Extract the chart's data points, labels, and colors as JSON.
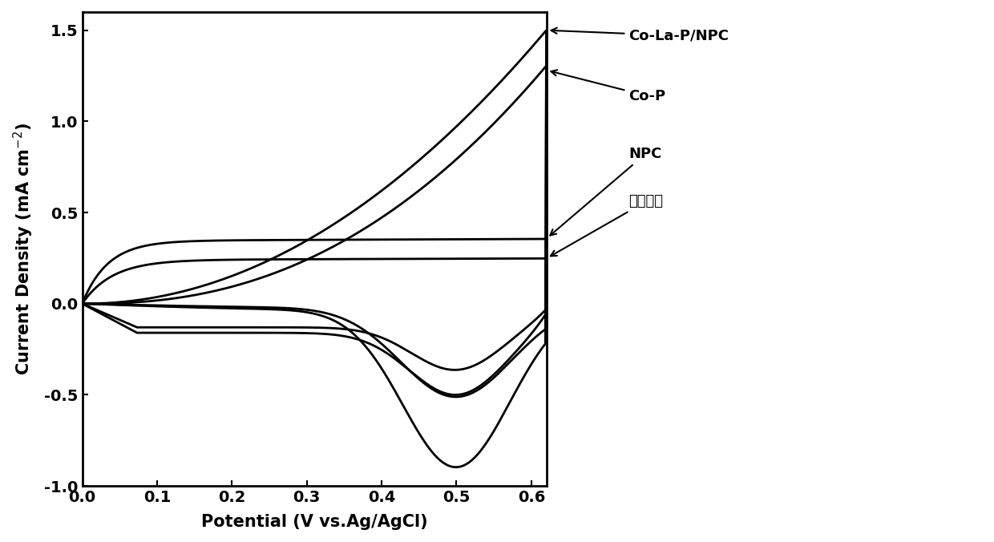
{
  "xlabel": "Potential (V vs.Ag/AgCl)",
  "ylabel": "Current Density (mA cm$^{-2}$)",
  "xlim": [
    0.0,
    0.62
  ],
  "ylim": [
    -1.0,
    1.6
  ],
  "xticks": [
    0.0,
    0.1,
    0.2,
    0.3,
    0.4,
    0.5,
    0.6
  ],
  "yticks": [
    -1.0,
    -0.5,
    0.0,
    0.5,
    1.0,
    1.5
  ],
  "line_color": "#000000",
  "lw": 2.0,
  "figsize": [
    12.4,
    6.76
  ],
  "dpi": 100
}
